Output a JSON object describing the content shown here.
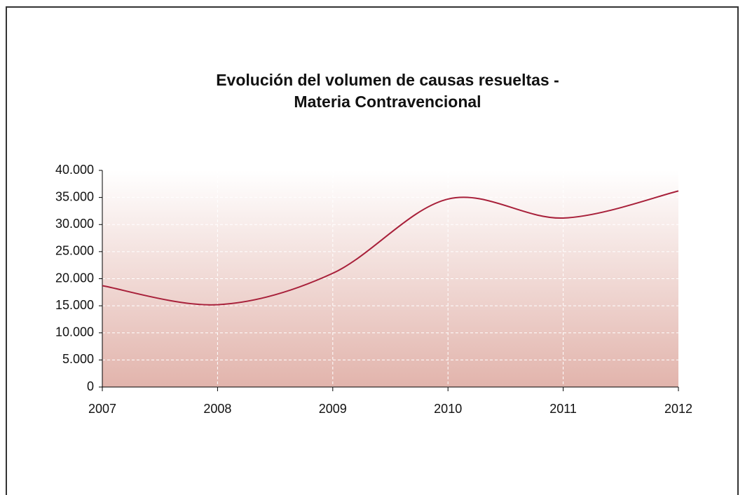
{
  "chart_data": {
    "type": "line",
    "title": [
      "Evolución del volumen de causas resueltas -",
      "Materia Contravencional"
    ],
    "x": [
      2007,
      2008,
      2009,
      2010,
      2011,
      2012
    ],
    "series": [
      {
        "name": "Causas resueltas",
        "color": "#a8203a",
        "values": [
          18700,
          15200,
          21000,
          34700,
          31200,
          36200
        ]
      }
    ],
    "xlim": [
      2007,
      2012
    ],
    "xticks": [
      2007,
      2008,
      2009,
      2010,
      2011,
      2012
    ],
    "ylim": [
      0,
      40000
    ],
    "yticks": [
      0,
      {
        "value": 5000,
        "label": "5.000"
      },
      {
        "value": 10000,
        "label": "10.000"
      },
      {
        "value": 15000,
        "label": "15.000"
      },
      {
        "value": 20000,
        "label": "20.000"
      },
      {
        "value": 25000,
        "label": "25.000"
      },
      {
        "value": 30000,
        "label": "30.000"
      },
      {
        "value": 35000,
        "label": "35.000"
      },
      {
        "value": 40000,
        "label": "40.000"
      }
    ],
    "grid": true,
    "smooth": true
  }
}
